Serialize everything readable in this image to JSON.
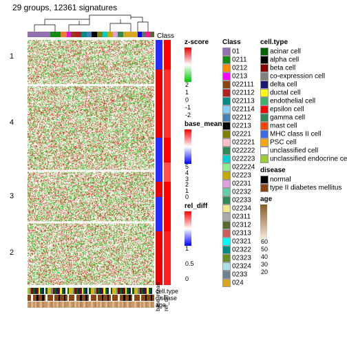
{
  "title": "29 groups, 12361 signatures",
  "class_label": "Class",
  "heatmap": {
    "dendro_color": "#000000",
    "row_clusters": [
      {
        "label": "1",
        "top_pct": 5
      },
      {
        "label": "4",
        "top_pct": 32
      },
      {
        "label": "3",
        "top_pct": 62
      },
      {
        "label": "2",
        "top_pct": 85
      }
    ],
    "column_class_colors": [
      {
        "c": "#9370b0",
        "w": 22
      },
      {
        "c": "#128b12",
        "w": 10
      },
      {
        "c": "#ed7d31",
        "w": 6
      },
      {
        "c": "#ec0eec",
        "w": 4
      },
      {
        "c": "#8b4513",
        "w": 4
      },
      {
        "c": "#b22222",
        "w": 6
      },
      {
        "c": "#008b8b",
        "w": 5
      },
      {
        "c": "#4682b4",
        "w": 5
      },
      {
        "c": "#000000",
        "w": 5
      },
      {
        "c": "#808000",
        "w": 5
      },
      {
        "c": "#00ced1",
        "w": 5
      },
      {
        "c": "#c6aa00",
        "w": 5
      },
      {
        "c": "#dda0dd",
        "w": 5
      },
      {
        "c": "#2e8b57",
        "w": 5
      },
      {
        "c": "#daa520",
        "w": 14
      },
      {
        "c": "#0000ff",
        "w": 4
      },
      {
        "c": "#696969",
        "w": 4
      },
      {
        "c": "#ff1493",
        "w": 4
      },
      {
        "c": "#556b2f",
        "w": 4
      }
    ],
    "hm_colors": {
      "low": "#00c800",
      "mid": "#ffffff",
      "high": "#e60000"
    },
    "zscore_strip": [
      {
        "c": "#2a2aff",
        "h": 12
      },
      {
        "c": "#e60000",
        "h": 28
      },
      {
        "c": "#2a2aff",
        "h": 10
      },
      {
        "c": "#2a2aff",
        "h": 8
      },
      {
        "c": "#e60000",
        "h": 6
      },
      {
        "c": "#2a2aff",
        "h": 14
      },
      {
        "c": "#e60000",
        "h": 22
      }
    ],
    "basemean_strip": [
      {
        "c": "#ff0000",
        "h": 12
      },
      {
        "c": "#ff3030",
        "h": 28
      },
      {
        "c": "#ff0000",
        "h": 10
      },
      {
        "c": "#ff5050",
        "h": 8
      },
      {
        "c": "#ff0000",
        "h": 6
      },
      {
        "c": "#ff0000",
        "h": 14
      },
      {
        "c": "#ff2020",
        "h": 22
      }
    ]
  },
  "bottom": {
    "rows": [
      {
        "label": "cell.type",
        "colors": [
          "#9acd32",
          "#808080",
          "#8b0000",
          "#006400",
          "#191970",
          "#8b0000",
          "#ffff00",
          "#006400",
          "#191970",
          "#ffffff",
          "#006400",
          "#ffa500"
        ]
      },
      {
        "label": "disease",
        "colors": [
          "#8b4513",
          "#8b4513",
          "#ffffff",
          "#8b4513",
          "#8b4513",
          "#000000",
          "#8b4513",
          "#8b4513",
          "#000000",
          "#8b4513",
          "#ffffff",
          "#8b4513"
        ]
      },
      {
        "label": "age",
        "colors": [
          "#c89868",
          "#b8885a",
          "#dab890",
          "#c89868",
          "#dab890",
          "#b8885a",
          "#c89868",
          "#dab890",
          "#b8885a",
          "#c89868",
          "#c89868",
          "#dab890"
        ]
      }
    ],
    "side_labels": [
      "base_mean",
      "rel_diff"
    ]
  },
  "legends": {
    "zscore": {
      "title": "z-score",
      "colors": [
        "#00c800",
        "#ffffff",
        "#e60000"
      ],
      "ticks": [
        "2",
        "1",
        "0",
        "-1",
        "-2"
      ]
    },
    "basemean": {
      "title": "base_mean",
      "colors": [
        "#0000ff",
        "#ffffff",
        "#ff0000"
      ],
      "ticks": [
        "5",
        "4",
        "3",
        "2",
        "1",
        "0"
      ]
    },
    "reldiff": {
      "title": "rel_diff",
      "colors": [
        "#0000ff",
        "#ffffff",
        "#ff0000"
      ],
      "ticks": [
        "1",
        "",
        "0.5",
        "",
        "0"
      ]
    },
    "class": {
      "title": "Class",
      "items": [
        {
          "c": "#9370b0",
          "t": "01"
        },
        {
          "c": "#128b12",
          "t": "0211"
        },
        {
          "c": "#ff8c00",
          "t": "0212"
        },
        {
          "c": "#ff00ff",
          "t": "0213"
        },
        {
          "c": "#8b4513",
          "t": "022111"
        },
        {
          "c": "#b22222",
          "t": "022112"
        },
        {
          "c": "#008b8b",
          "t": "022113"
        },
        {
          "c": "#87cefa",
          "t": "022114"
        },
        {
          "c": "#4682b4",
          "t": "02212"
        },
        {
          "c": "#000000",
          "t": "02213"
        },
        {
          "c": "#808000",
          "t": "02221"
        },
        {
          "c": "#ffc0cb",
          "t": "022221"
        },
        {
          "c": "#2e8b57",
          "t": "022222"
        },
        {
          "c": "#00ced1",
          "t": "022223"
        },
        {
          "c": "#90ee90",
          "t": "022224"
        },
        {
          "c": "#c6aa00",
          "t": "02223"
        },
        {
          "c": "#dda0dd",
          "t": "02231"
        },
        {
          "c": "#66cdaa",
          "t": "02232"
        },
        {
          "c": "#2e8b57",
          "t": "02233"
        },
        {
          "c": "#f0e68c",
          "t": "02234"
        },
        {
          "c": "#a9a9a9",
          "t": "02311"
        },
        {
          "c": "#556b2f",
          "t": "02312"
        },
        {
          "c": "#cd5c5c",
          "t": "02313"
        },
        {
          "c": "#00ffff",
          "t": "02321"
        },
        {
          "c": "#008b8b",
          "t": "02322"
        },
        {
          "c": "#6b8e23",
          "t": "02323"
        },
        {
          "c": "#b0e0e6",
          "t": "02324"
        },
        {
          "c": "#708090",
          "t": "0233"
        },
        {
          "c": "#daa520",
          "t": "024"
        }
      ]
    },
    "celltype": {
      "title": "cell.type",
      "items": [
        {
          "c": "#006400",
          "t": "acinar cell"
        },
        {
          "c": "#000000",
          "t": "alpha cell"
        },
        {
          "c": "#8b0000",
          "t": "beta cell"
        },
        {
          "c": "#808080",
          "t": "co-expression cell"
        },
        {
          "c": "#191970",
          "t": "delta cell"
        },
        {
          "c": "#ffff00",
          "t": "ductal cell"
        },
        {
          "c": "#3cb371",
          "t": "endothelial cell"
        },
        {
          "c": "#ff0000",
          "t": "epsilon cell"
        },
        {
          "c": "#2e8b57",
          "t": "gamma cell"
        },
        {
          "c": "#ff4500",
          "t": "mast cell"
        },
        {
          "c": "#4169e1",
          "t": "MHC class II cell"
        },
        {
          "c": "#ffa500",
          "t": "PSC cell"
        },
        {
          "c": "#ffffff",
          "t": "unclassified cell"
        },
        {
          "c": "#9acd32",
          "t": "unclassified endocrine cell"
        }
      ]
    },
    "disease": {
      "title": "disease",
      "items": [
        {
          "c": "#000000",
          "t": "normal"
        },
        {
          "c": "#8b4513",
          "t": "type II diabetes mellitus"
        }
      ]
    },
    "age": {
      "title": "age",
      "colors": [
        "#f5e8d8",
        "#8b5a2b"
      ],
      "ticks": [
        "60",
        "50",
        "40",
        "30",
        "20"
      ]
    }
  }
}
